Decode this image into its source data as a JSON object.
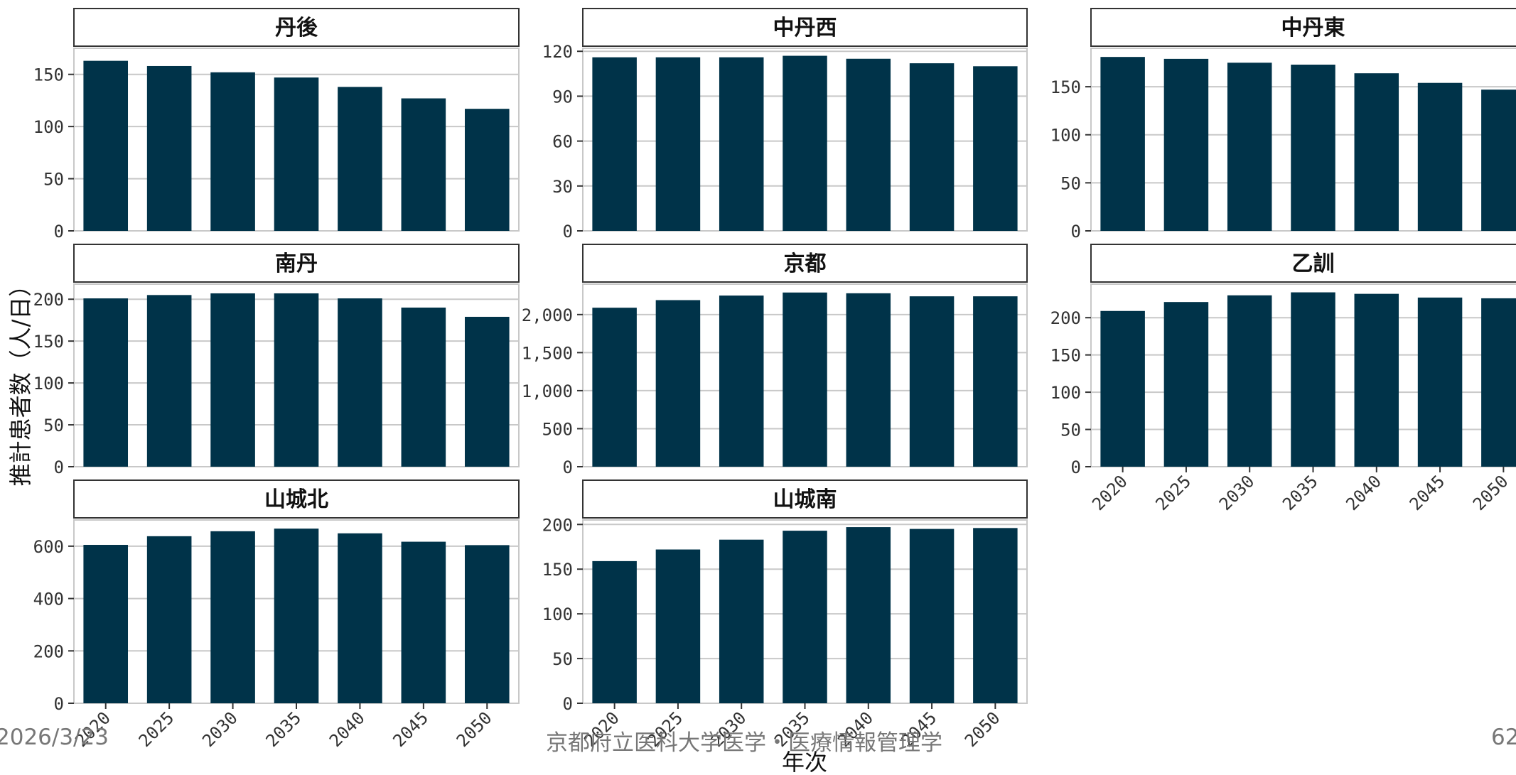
{
  "colors": {
    "bar": "#003349",
    "grid": "#c8c8c8",
    "strip_bg": "#ffffff",
    "strip_border": "#333333",
    "axis_text": "#333333",
    "footer_text": "#777777"
  },
  "footer": {
    "date": "2026/3/23",
    "org": "京都府立医科大学医学・医療情報管理学",
    "page": "62"
  },
  "chart_data": {
    "type": "bar",
    "facet": true,
    "xlabel": "年次",
    "ylabel": "推計患者数（人/日）",
    "categories": [
      "2020",
      "2025",
      "2030",
      "2035",
      "2040",
      "2045",
      "2050"
    ],
    "grid": true,
    "panels": [
      {
        "title": "丹後",
        "values": [
          163,
          158,
          152,
          147,
          138,
          127,
          117
        ],
        "ylim": [
          0,
          175
        ],
        "yticks": [
          0,
          50,
          100,
          150
        ],
        "ytick_labels": [
          "0",
          "50",
          "100",
          "150"
        ]
      },
      {
        "title": "中丹西",
        "values": [
          116,
          116,
          116,
          117,
          115,
          112,
          110
        ],
        "ylim": [
          0,
          122
        ],
        "yticks": [
          0,
          30,
          60,
          90,
          120
        ],
        "ytick_labels": [
          "0",
          "30",
          "60",
          "90",
          "120"
        ]
      },
      {
        "title": "中丹東",
        "values": [
          181,
          179,
          175,
          173,
          164,
          154,
          147
        ],
        "ylim": [
          0,
          190
        ],
        "yticks": [
          0,
          50,
          100,
          150
        ],
        "ytick_labels": [
          "0",
          "50",
          "100",
          "150"
        ]
      },
      {
        "title": "南丹",
        "values": [
          201,
          205,
          207,
          207,
          201,
          190,
          179
        ],
        "ylim": [
          0,
          218
        ],
        "yticks": [
          0,
          50,
          100,
          150,
          200
        ],
        "ytick_labels": [
          "0",
          "50",
          "100",
          "150",
          "200"
        ]
      },
      {
        "title": "京都",
        "values": [
          2090,
          2190,
          2250,
          2290,
          2280,
          2240,
          2240
        ],
        "ylim": [
          0,
          2400
        ],
        "yticks": [
          0,
          500,
          1000,
          1500,
          2000
        ],
        "ytick_labels": [
          "0",
          "500",
          "1,000",
          "1,500",
          "2,000"
        ]
      },
      {
        "title": "乙訓",
        "values": [
          209,
          221,
          230,
          234,
          232,
          227,
          226
        ],
        "ylim": [
          0,
          245
        ],
        "yticks": [
          0,
          50,
          100,
          150,
          200
        ],
        "ytick_labels": [
          "0",
          "50",
          "100",
          "150",
          "200"
        ]
      },
      {
        "title": "山城北",
        "values": [
          605,
          638,
          657,
          667,
          649,
          617,
          604
        ],
        "ylim": [
          0,
          700
        ],
        "yticks": [
          0,
          200,
          400,
          600
        ],
        "ytick_labels": [
          "0",
          "200",
          "400",
          "600"
        ]
      },
      {
        "title": "山城南",
        "values": [
          159,
          172,
          183,
          193,
          197,
          195,
          196
        ],
        "ylim": [
          0,
          205
        ],
        "yticks": [
          0,
          50,
          100,
          150,
          200
        ],
        "ytick_labels": [
          "0",
          "50",
          "100",
          "150",
          "200"
        ]
      }
    ],
    "x_axis_shown_on_panels": [
      "乙訓",
      "山城北",
      "山城南"
    ]
  }
}
